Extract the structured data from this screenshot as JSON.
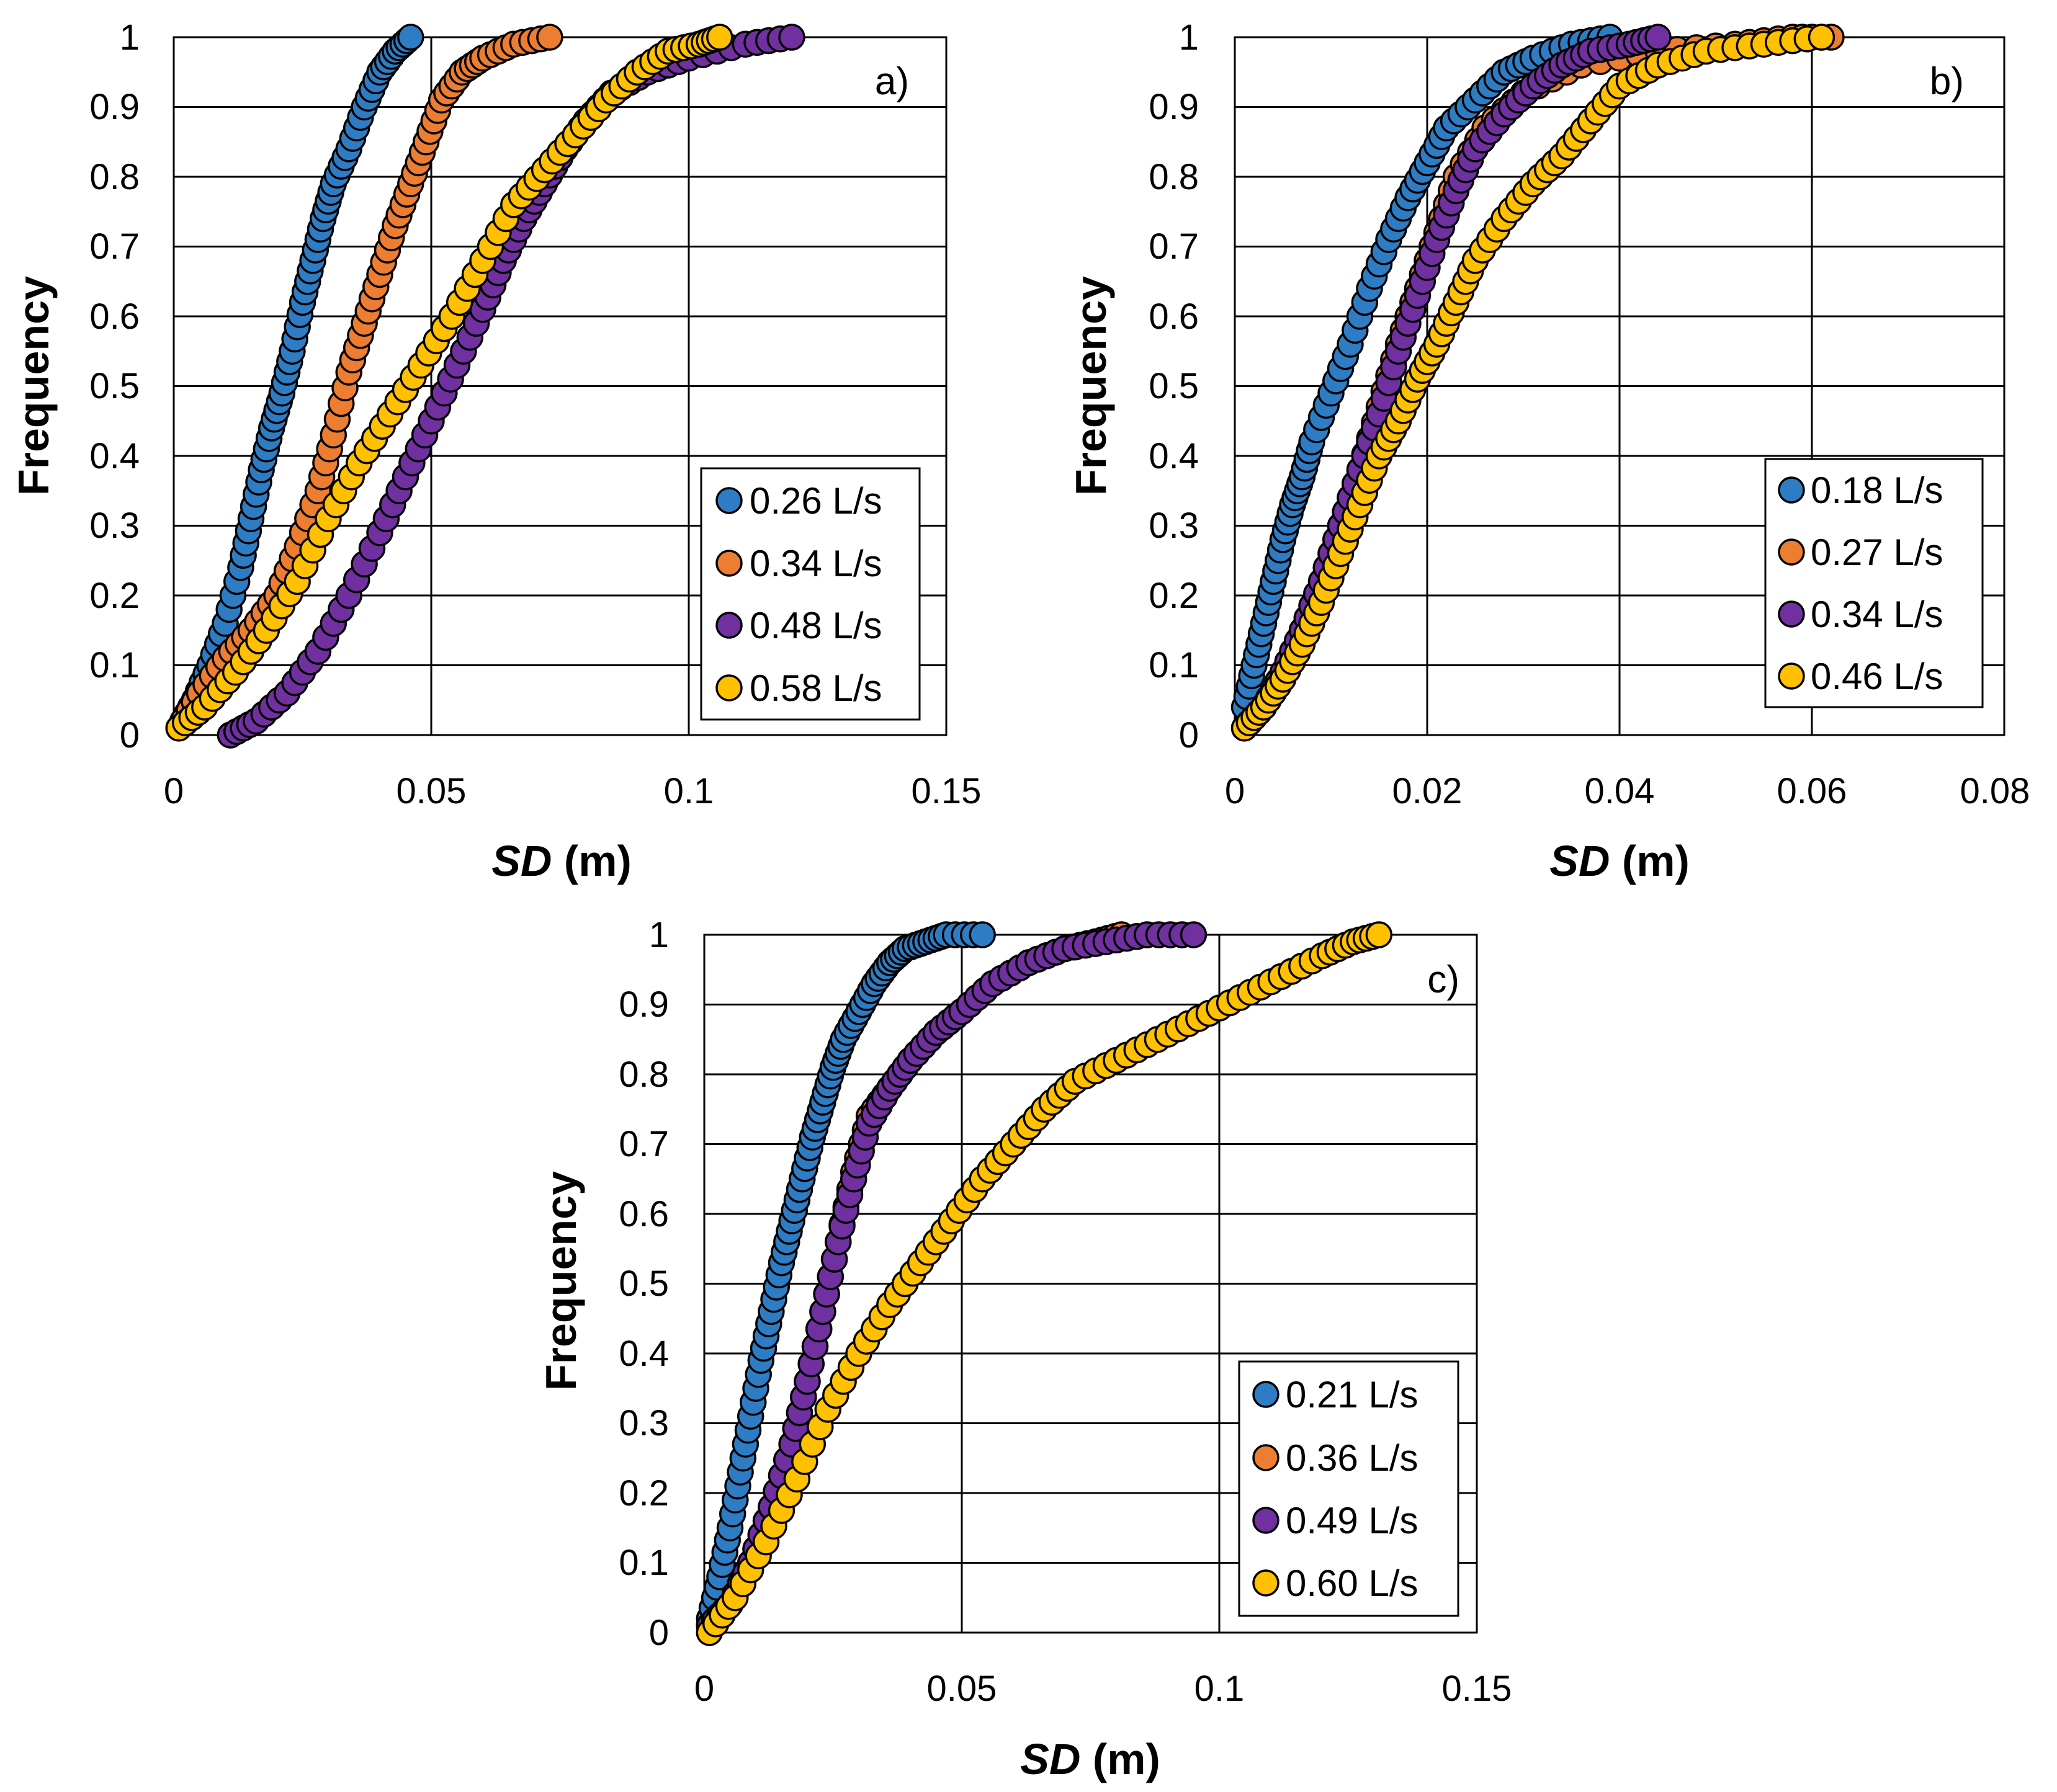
{
  "colors": {
    "blue": "#2E7DC4",
    "orange": "#ED7D31",
    "purple": "#7030A0",
    "yellow": "#FFC000"
  },
  "chart_data": [
    {
      "type": "scatter",
      "panel_label": "a)",
      "title": "",
      "xlabel_italic": "SD",
      "xlabel_unit": " (m)",
      "ylabel": "Frequency",
      "xlim": [
        0,
        0.15
      ],
      "ylim": [
        0,
        1
      ],
      "x_ticks": [
        "0",
        "0.05",
        "0.1",
        "0.15"
      ],
      "y_ticks": [
        "0",
        "0.1",
        "0.2",
        "0.3",
        "0.4",
        "0.5",
        "0.6",
        "0.7",
        "0.8",
        "0.9",
        "1"
      ],
      "grid": true,
      "legend_position": "lower-right",
      "series": [
        {
          "name": "0.26 L/s",
          "color": "blue",
          "x": [
            0.001,
            0.004,
            0.007,
            0.01,
            0.013,
            0.015,
            0.017,
            0.019,
            0.021,
            0.023,
            0.025,
            0.027,
            0.029,
            0.031,
            0.034,
            0.037,
            0.04,
            0.043,
            0.046
          ],
          "y": [
            0.01,
            0.05,
            0.1,
            0.16,
            0.24,
            0.31,
            0.38,
            0.44,
            0.49,
            0.55,
            0.62,
            0.68,
            0.74,
            0.79,
            0.84,
            0.9,
            0.95,
            0.98,
            1.0
          ]
        },
        {
          "name": "0.34 L/s",
          "color": "orange",
          "x": [
            0.001,
            0.005,
            0.01,
            0.015,
            0.02,
            0.024,
            0.028,
            0.031,
            0.034,
            0.037,
            0.04,
            0.043,
            0.046,
            0.049,
            0.052,
            0.056,
            0.06,
            0.066,
            0.073
          ],
          "y": [
            0.01,
            0.06,
            0.11,
            0.15,
            0.2,
            0.27,
            0.35,
            0.43,
            0.52,
            0.59,
            0.66,
            0.73,
            0.79,
            0.85,
            0.91,
            0.95,
            0.97,
            0.99,
            1.0
          ]
        },
        {
          "name": "0.48 L/s",
          "color": "purple",
          "x": [
            0.011,
            0.016,
            0.022,
            0.028,
            0.034,
            0.04,
            0.045,
            0.05,
            0.055,
            0.06,
            0.064,
            0.068,
            0.072,
            0.076,
            0.08,
            0.085,
            0.092,
            0.1,
            0.111,
            0.12
          ],
          "y": [
            0.0,
            0.02,
            0.06,
            0.12,
            0.2,
            0.29,
            0.37,
            0.45,
            0.53,
            0.61,
            0.68,
            0.74,
            0.79,
            0.84,
            0.88,
            0.92,
            0.95,
            0.97,
            0.99,
            1.0
          ]
        },
        {
          "name": "0.58 L/s",
          "color": "yellow",
          "x": [
            0.001,
            0.006,
            0.012,
            0.018,
            0.024,
            0.03,
            0.036,
            0.042,
            0.048,
            0.054,
            0.06,
            0.066,
            0.072,
            0.078,
            0.084,
            0.09,
            0.096,
            0.102,
            0.106
          ],
          "y": [
            0.01,
            0.04,
            0.09,
            0.15,
            0.22,
            0.31,
            0.39,
            0.46,
            0.53,
            0.6,
            0.68,
            0.76,
            0.81,
            0.86,
            0.91,
            0.95,
            0.98,
            0.99,
            1.0
          ]
        }
      ]
    },
    {
      "type": "scatter",
      "panel_label": "b)",
      "title": "",
      "xlabel_italic": "SD",
      "xlabel_unit": " (m)",
      "ylabel": "Frequency",
      "xlim": [
        0,
        0.08
      ],
      "ylim": [
        0,
        1
      ],
      "x_ticks": [
        "0",
        "0.02",
        "0.04",
        "0.06",
        "0.08"
      ],
      "y_ticks": [
        "0",
        "0.1",
        "0.2",
        "0.3",
        "0.4",
        "0.5",
        "0.6",
        "0.7",
        "0.8",
        "0.9",
        "1"
      ],
      "grid": true,
      "legend_position": "lower-right",
      "series": [
        {
          "name": "0.18 L/s",
          "color": "blue",
          "x": [
            0.001,
            0.002,
            0.003,
            0.004,
            0.005,
            0.006,
            0.007,
            0.008,
            0.01,
            0.012,
            0.014,
            0.016,
            0.018,
            0.02,
            0.022,
            0.025,
            0.028,
            0.031,
            0.035,
            0.039
          ],
          "y": [
            0.04,
            0.1,
            0.16,
            0.22,
            0.28,
            0.33,
            0.37,
            0.42,
            0.49,
            0.56,
            0.64,
            0.71,
            0.77,
            0.82,
            0.87,
            0.91,
            0.95,
            0.97,
            0.99,
            1.0
          ]
        },
        {
          "name": "0.27 L/s",
          "color": "orange",
          "x": [
            0.001,
            0.003,
            0.005,
            0.007,
            0.009,
            0.011,
            0.013,
            0.015,
            0.017,
            0.019,
            0.021,
            0.023,
            0.026,
            0.03,
            0.036,
            0.044,
            0.052,
            0.058,
            0.062
          ],
          "y": [
            0.01,
            0.04,
            0.09,
            0.15,
            0.22,
            0.3,
            0.38,
            0.47,
            0.56,
            0.64,
            0.72,
            0.8,
            0.87,
            0.92,
            0.96,
            0.98,
            0.99,
            1.0,
            1.0
          ]
        },
        {
          "name": "0.34 L/s",
          "color": "purple",
          "x": [
            0.001,
            0.003,
            0.005,
            0.007,
            0.009,
            0.011,
            0.013,
            0.015,
            0.017,
            0.019,
            0.021,
            0.023,
            0.025,
            0.028,
            0.031,
            0.034,
            0.037,
            0.041,
            0.044
          ],
          "y": [
            0.01,
            0.04,
            0.09,
            0.15,
            0.22,
            0.3,
            0.38,
            0.46,
            0.55,
            0.63,
            0.71,
            0.78,
            0.84,
            0.89,
            0.93,
            0.96,
            0.98,
            0.99,
            1.0
          ]
        },
        {
          "name": "0.46 L/s",
          "color": "yellow",
          "x": [
            0.001,
            0.003,
            0.005,
            0.007,
            0.009,
            0.011,
            0.013,
            0.015,
            0.017,
            0.019,
            0.021,
            0.023,
            0.025,
            0.028,
            0.031,
            0.034,
            0.037,
            0.04,
            0.044,
            0.049,
            0.055,
            0.061
          ],
          "y": [
            0.01,
            0.04,
            0.08,
            0.13,
            0.19,
            0.26,
            0.33,
            0.4,
            0.45,
            0.51,
            0.56,
            0.62,
            0.68,
            0.74,
            0.79,
            0.83,
            0.88,
            0.93,
            0.96,
            0.98,
            0.99,
            1.0
          ]
        }
      ]
    },
    {
      "type": "scatter",
      "panel_label": "c)",
      "title": "",
      "xlabel_italic": "SD",
      "xlabel_unit": " (m)",
      "ylabel": "Frequency",
      "xlim": [
        0,
        0.15
      ],
      "ylim": [
        0,
        1
      ],
      "x_ticks": [
        "0",
        "0.05",
        "0.1",
        "0.15"
      ],
      "y_ticks": [
        "0",
        "0.1",
        "0.2",
        "0.3",
        "0.4",
        "0.5",
        "0.6",
        "0.7",
        "0.8",
        "0.9",
        "1"
      ],
      "grid": true,
      "legend_position": "lower-right",
      "series": [
        {
          "name": "0.21 L/s",
          "color": "blue",
          "x": [
            0.001,
            0.003,
            0.005,
            0.007,
            0.009,
            0.011,
            0.013,
            0.015,
            0.017,
            0.019,
            0.021,
            0.023,
            0.025,
            0.027,
            0.03,
            0.033,
            0.036,
            0.039,
            0.043,
            0.047,
            0.054
          ],
          "y": [
            0.02,
            0.08,
            0.15,
            0.23,
            0.31,
            0.39,
            0.46,
            0.53,
            0.59,
            0.65,
            0.71,
            0.76,
            0.81,
            0.85,
            0.89,
            0.93,
            0.96,
            0.98,
            0.99,
            1.0,
            1.0
          ]
        },
        {
          "name": "0.36 L/s",
          "color": "orange",
          "x": [
            0.001,
            0.005,
            0.009,
            0.013,
            0.017,
            0.02,
            0.023,
            0.026,
            0.029,
            0.032,
            0.036,
            0.04,
            0.045,
            0.05,
            0.056,
            0.063,
            0.07,
            0.076,
            0.081
          ],
          "y": [
            0.01,
            0.04,
            0.1,
            0.18,
            0.27,
            0.36,
            0.46,
            0.56,
            0.66,
            0.74,
            0.78,
            0.82,
            0.86,
            0.89,
            0.93,
            0.96,
            0.98,
            0.99,
            1.0
          ]
        },
        {
          "name": "0.49 L/s",
          "color": "purple",
          "x": [
            0.001,
            0.005,
            0.009,
            0.013,
            0.017,
            0.02,
            0.023,
            0.026,
            0.029,
            0.032,
            0.036,
            0.04,
            0.045,
            0.05,
            0.056,
            0.063,
            0.07,
            0.078,
            0.086,
            0.095
          ],
          "y": [
            0.01,
            0.04,
            0.1,
            0.18,
            0.27,
            0.36,
            0.46,
            0.56,
            0.65,
            0.73,
            0.78,
            0.82,
            0.86,
            0.89,
            0.93,
            0.96,
            0.98,
            0.99,
            1.0,
            1.0
          ]
        },
        {
          "name": "0.60 L/s",
          "color": "yellow",
          "x": [
            0.001,
            0.006,
            0.012,
            0.018,
            0.024,
            0.03,
            0.036,
            0.042,
            0.048,
            0.054,
            0.06,
            0.066,
            0.072,
            0.08,
            0.088,
            0.096,
            0.104,
            0.112,
            0.12,
            0.126,
            0.131
          ],
          "y": [
            0.0,
            0.05,
            0.13,
            0.22,
            0.32,
            0.4,
            0.47,
            0.53,
            0.59,
            0.65,
            0.7,
            0.75,
            0.79,
            0.82,
            0.85,
            0.88,
            0.91,
            0.94,
            0.97,
            0.99,
            1.0
          ]
        }
      ]
    }
  ]
}
